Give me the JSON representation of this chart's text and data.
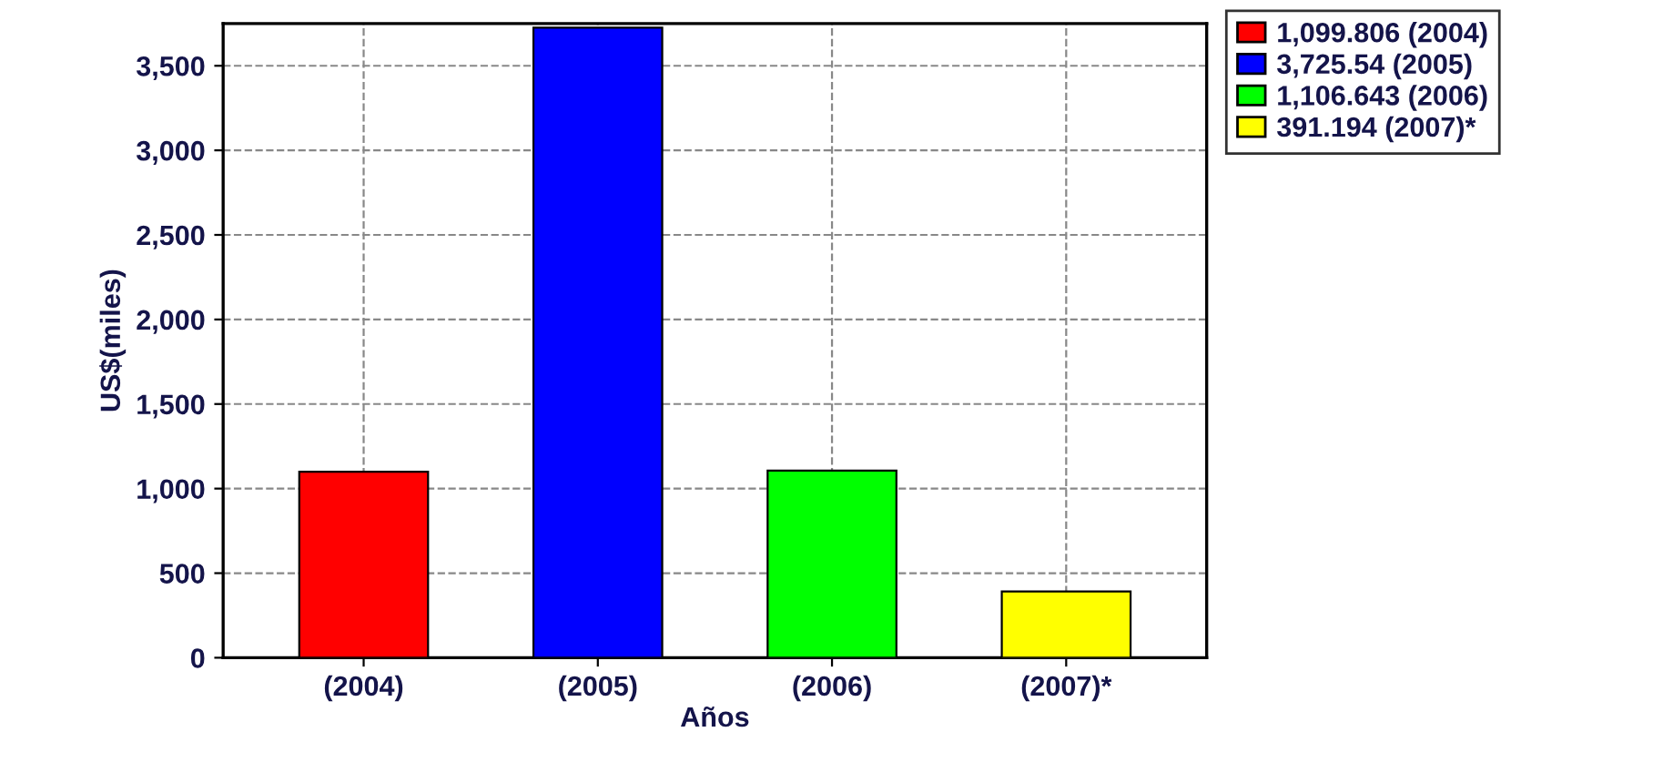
{
  "chart_data": {
    "type": "bar",
    "xlabel": "Años",
    "ylabel": "US$(miles)",
    "categories": [
      "(2004)",
      "(2005)",
      "(2006)",
      "(2007)*"
    ],
    "series": [
      {
        "name": "1,099.806 (2004)",
        "color": "#ff0000",
        "values": [
          1099.806,
          null,
          null,
          null
        ]
      },
      {
        "name": "3,725.54 (2005)",
        "color": "#0000ff",
        "values": [
          null,
          3725.54,
          null,
          null
        ]
      },
      {
        "name": "1,106.643 (2006)",
        "color": "#00ff00",
        "values": [
          null,
          null,
          1106.643,
          null
        ]
      },
      {
        "name": "391.194 (2007)*",
        "color": "#ffff00",
        "values": [
          null,
          null,
          null,
          391.194
        ]
      }
    ],
    "ylim": [
      0,
      3750
    ],
    "yticks": [
      {
        "value": 0,
        "label": "0"
      },
      {
        "value": 500,
        "label": "500"
      },
      {
        "value": 1000,
        "label": "1,000"
      },
      {
        "value": 1500,
        "label": "1,500"
      },
      {
        "value": 2000,
        "label": "2,000"
      },
      {
        "value": 2500,
        "label": "2,500"
      },
      {
        "value": 3000,
        "label": "3,000"
      },
      {
        "value": 3500,
        "label": "3,500"
      }
    ],
    "grid": true,
    "legend": "top right"
  }
}
